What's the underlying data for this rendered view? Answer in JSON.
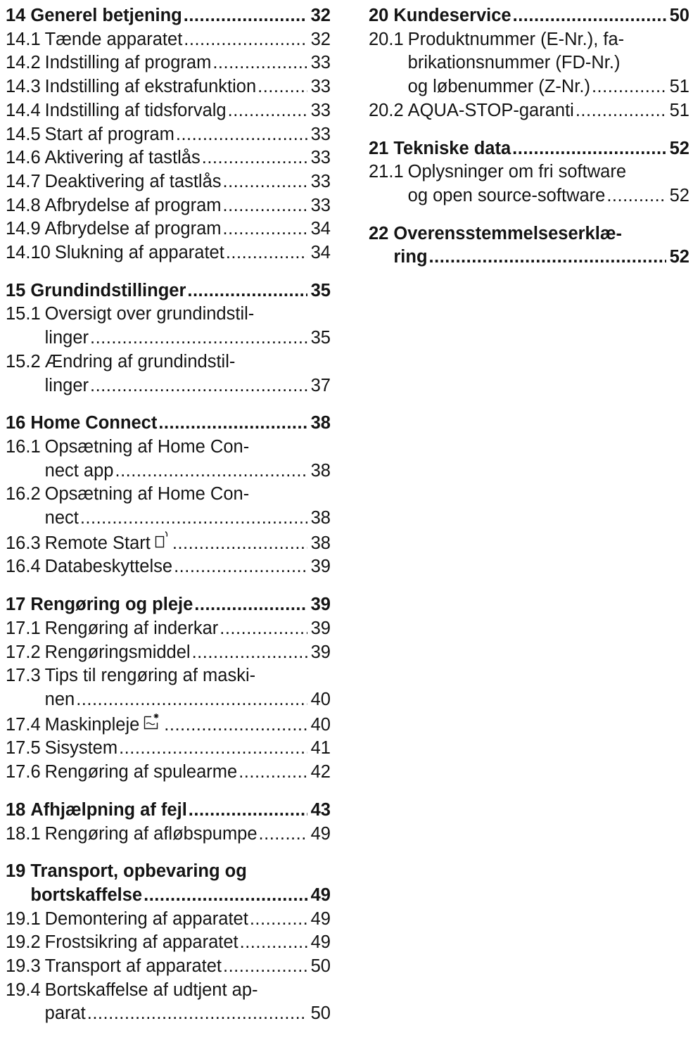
{
  "left": [
    {
      "num": "14",
      "title": "Generel betjening",
      "page": "32",
      "entries": [
        {
          "num": "14.1",
          "title": "Tænde apparatet",
          "page": "32"
        },
        {
          "num": "14.2",
          "title": "Indstilling af program",
          "page": "33"
        },
        {
          "num": "14.3",
          "title": "Indstilling af ekstrafunktion",
          "page": "33"
        },
        {
          "num": "14.4",
          "title": "Indstilling af tidsforvalg",
          "page": "33"
        },
        {
          "num": "14.5",
          "title": "Start af program",
          "page": "33"
        },
        {
          "num": "14.6",
          "title": "Aktivering af tastlås",
          "page": "33"
        },
        {
          "num": "14.7",
          "title": "Deaktivering af tastlås",
          "page": "33"
        },
        {
          "num": "14.8",
          "title": "Afbrydelse af program",
          "page": "33"
        },
        {
          "num": "14.9",
          "title": "Afbrydelse af program",
          "page": "34"
        },
        {
          "num": "14.10",
          "title": "Slukning af apparatet",
          "page": "34"
        }
      ]
    },
    {
      "num": "15",
      "title": "Grundindstillinger",
      "page": "35",
      "entries": [
        {
          "num": "15.1",
          "title": "Oversigt over grundindstil-",
          "cont": "linger",
          "page": "35"
        },
        {
          "num": "15.2",
          "title": "Ændring af grundindstil-",
          "cont": "linger",
          "page": "37"
        }
      ]
    },
    {
      "num": "16",
      "title": "Home Connect",
      "page": "38",
      "entries": [
        {
          "num": "16.1",
          "title": "Opsætning af Home Con-",
          "cont": "nect app",
          "page": "38"
        },
        {
          "num": "16.2",
          "title": "Opsætning af Home Con-",
          "cont": "nect",
          "page": "38"
        },
        {
          "num": "16.3",
          "title": "Remote Start",
          "icon": "remote-start-icon",
          "page": "38"
        },
        {
          "num": "16.4",
          "title": "Databeskyttelse",
          "page": "39"
        }
      ]
    },
    {
      "num": "17",
      "title": "Rengøring og pleje",
      "page": "39",
      "entries": [
        {
          "num": "17.1",
          "title": "Rengøring af inderkar",
          "page": "39"
        },
        {
          "num": "17.2",
          "title": "Rengøringsmiddel",
          "page": "39"
        },
        {
          "num": "17.3",
          "title": "Tips til rengøring af maski-",
          "cont": "nen",
          "page": "40"
        },
        {
          "num": "17.4",
          "title": "Maskinpleje",
          "icon": "machine-care-icon",
          "page": "40"
        },
        {
          "num": "17.5",
          "title": "Sisystem",
          "page": "41"
        },
        {
          "num": "17.6",
          "title": "Rengøring af spulearme",
          "page": "42"
        }
      ]
    },
    {
      "num": "18",
      "title": "Afhjælpning af fejl",
      "page": "43",
      "entries": [
        {
          "num": "18.1",
          "title": "Rengøring af afløbspumpe",
          "page": "49"
        }
      ]
    },
    {
      "num": "19",
      "title": "Transport, opbevaring og",
      "cont": "bortskaffelse",
      "page": "49",
      "entries": [
        {
          "num": "19.1",
          "title": "Demontering af apparatet",
          "page": "49"
        },
        {
          "num": "19.2",
          "title": "Frostsikring af apparatet",
          "page": "49"
        },
        {
          "num": "19.3",
          "title": "Transport af apparatet",
          "page": "50"
        },
        {
          "num": "19.4",
          "title": "Bortskaffelse af udtjent ap-",
          "cont": "parat",
          "page": "50"
        }
      ]
    }
  ],
  "right": [
    {
      "num": "20",
      "title": "Kundeservice",
      "page": "50",
      "entries": [
        {
          "num": "20.1",
          "title": "Produktnummer (E-Nr.), fa-",
          "lines": [
            "brikationsnummer (FD-Nr.)"
          ],
          "cont": "og løbenummer (Z-Nr.)",
          "page": "51"
        },
        {
          "num": "20.2",
          "title": "AQUA-STOP-garanti",
          "page": "51"
        }
      ]
    },
    {
      "num": "21",
      "title": "Tekniske data",
      "page": "52",
      "entries": [
        {
          "num": "21.1",
          "title": "Oplysninger om fri software",
          "cont": "og open source-software",
          "page": "52"
        }
      ]
    },
    {
      "num": "22",
      "title": "Overensstemmelseserklæ-",
      "cont": "ring",
      "page": "52",
      "entries": []
    }
  ]
}
